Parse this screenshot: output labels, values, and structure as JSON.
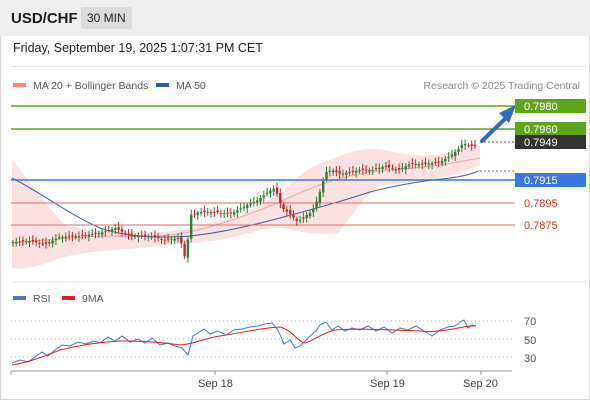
{
  "header": {
    "symbol": "USD/CHF",
    "timeframe": "30 MIN"
  },
  "timestamp": "Friday, September 19, 2025 1:07:31 PM CET",
  "legend": {
    "ma20": {
      "label": "MA 20 + Bollinger Bands",
      "color": "#f28b82"
    },
    "ma50": {
      "label": "MA 50",
      "color": "#2e5a9c"
    }
  },
  "source": "Research © 2025 Trading Central",
  "rsi_legend": {
    "rsi": {
      "label": "RSI",
      "color": "#4a78c8"
    },
    "ma9": {
      "label": "9MA",
      "color": "#e02020"
    }
  },
  "levels": [
    {
      "value": "0.7980",
      "color": "#5ea51a",
      "style": "badge"
    },
    {
      "value": "0.7960",
      "color": "#5ea51a",
      "style": "badge"
    },
    {
      "value": "0.7949",
      "color": "#333333",
      "style": "badge"
    },
    {
      "value": "0.7915",
      "color": "#3a78e0",
      "style": "badge"
    },
    {
      "value": "0.7895",
      "color": "#d93025",
      "style": "text"
    },
    {
      "value": "0.7875",
      "color": "#d93025",
      "style": "text"
    }
  ],
  "rsi_axis": [
    "70",
    "50",
    "30"
  ],
  "x_axis": [
    "Sep 18",
    "Sep 19",
    "Sep 20"
  ]
}
